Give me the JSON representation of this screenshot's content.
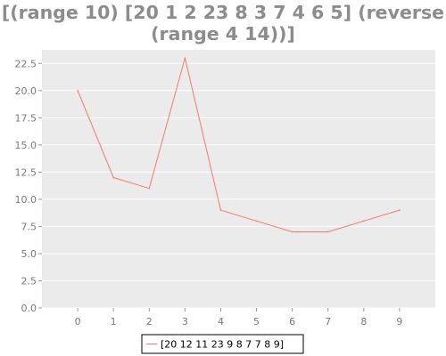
{
  "chart_data": {
    "type": "line",
    "title_line1": "[(range 10) [20 1 2 23 8 3 7 4 6 5] (reverse",
    "title_line2": "(range 4 14))]",
    "x": [
      0,
      1,
      2,
      3,
      4,
      5,
      6,
      7,
      8,
      9
    ],
    "series": [
      {
        "name": "[20 12 11 23 9 8 7 7 8 9]",
        "values": [
          20,
          12,
          11,
          23,
          9,
          8,
          7,
          7,
          8,
          9
        ],
        "color": "#f8766d"
      }
    ],
    "xlim": [
      -1,
      10
    ],
    "ylim": [
      0,
      23.75
    ],
    "xticks": [
      0,
      1,
      2,
      3,
      4,
      5,
      6,
      7,
      8,
      9
    ],
    "yticks": [
      0.0,
      2.5,
      5.0,
      7.5,
      10.0,
      12.5,
      15.0,
      17.5,
      20.0,
      22.5
    ],
    "ytick_labels": [
      "0.0",
      "2.5",
      "5.0",
      "7.5",
      "10.0",
      "12.5",
      "15.0",
      "17.5",
      "20.0",
      "22.5"
    ],
    "grid": true,
    "legend_position": "bottom-center",
    "background": "#ebebeb",
    "grid_color": "#ffffff",
    "text_color": "#7a7a7a"
  }
}
